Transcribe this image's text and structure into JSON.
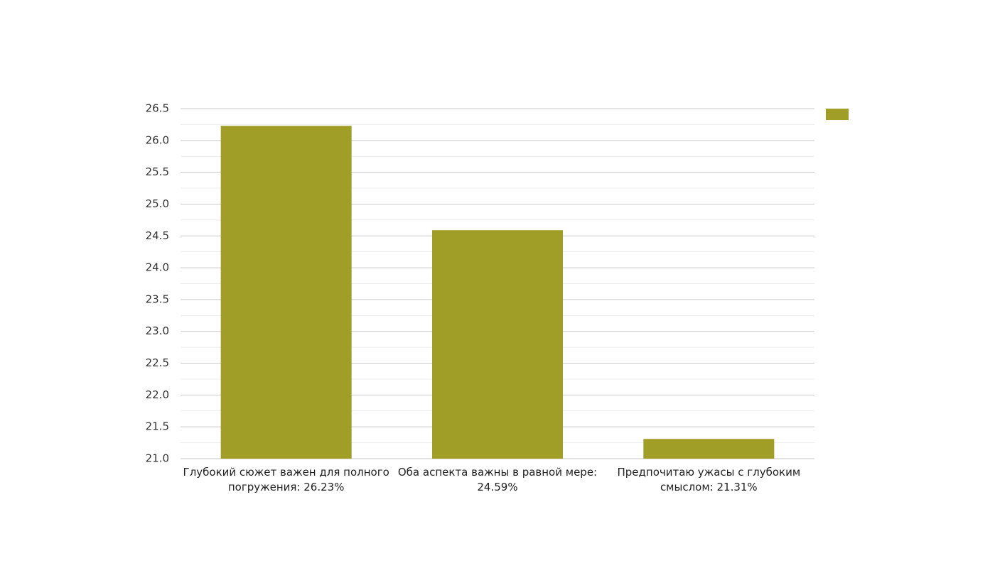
{
  "chart_data": {
    "type": "bar",
    "categories": [
      "Глубокий сюжет важен для полного погружения: 26.23%",
      "Оба аспекта важны в равной мере: 24.59%",
      "Предпочитаю ужасы с глубоким смыслом: 21.31%"
    ],
    "values": [
      26.23,
      24.59,
      21.31
    ],
    "color": "#a09e27",
    "ylim": [
      21.0,
      26.5
    ],
    "yticks": [
      {
        "value": 21.0,
        "label": "21.0"
      },
      {
        "value": 21.5,
        "label": "21.5"
      },
      {
        "value": 22.0,
        "label": "22.0"
      },
      {
        "value": 22.5,
        "label": "22.5"
      },
      {
        "value": 23.0,
        "label": "23.0"
      },
      {
        "value": 23.5,
        "label": "23.5"
      },
      {
        "value": 24.0,
        "label": "24.0"
      },
      {
        "value": 24.5,
        "label": "24.5"
      },
      {
        "value": 25.0,
        "label": "25.0"
      },
      {
        "value": 25.5,
        "label": "25.5"
      },
      {
        "value": 26.0,
        "label": "26.0"
      },
      {
        "value": 26.5,
        "label": "26.5"
      }
    ],
    "grid": true
  }
}
